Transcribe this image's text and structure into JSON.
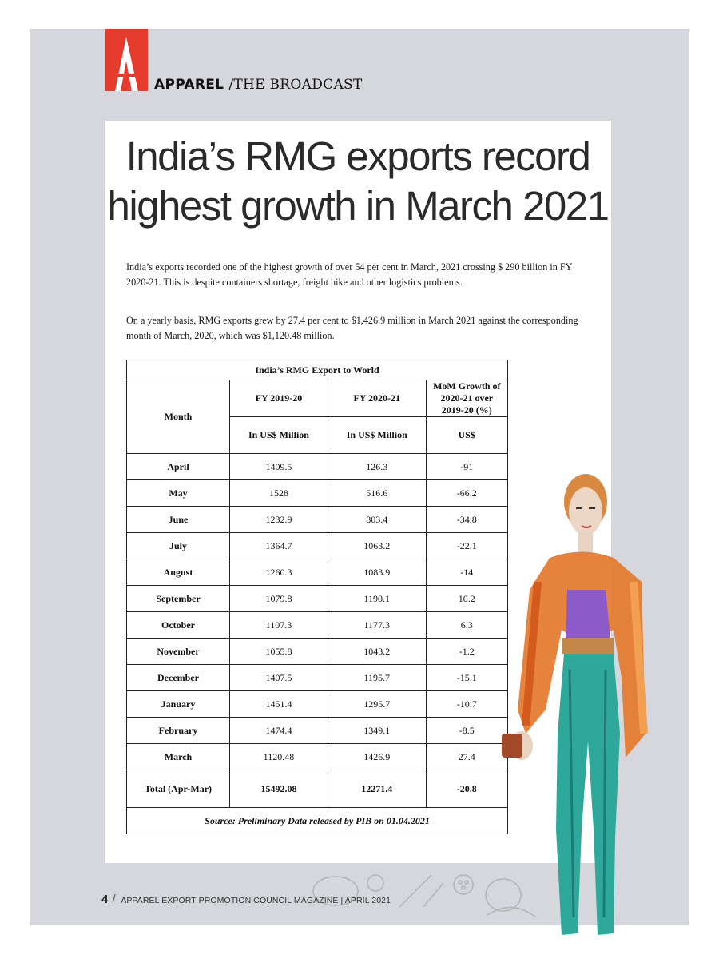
{
  "header": {
    "brand": "APPAREL",
    "section": "/THE BROADCAST"
  },
  "article": {
    "headline_line1": "India’s RMG exports record",
    "headline_line2": "highest growth in March 2021",
    "para1": "India’s exports recorded one of the highest growth of over 54 per cent in March, 2021 crossing $ 290 billion in FY 2020-21. This is despite containers shortage, freight hike and other logistics problems.",
    "para2": "On a yearly basis, RMG exports grew by 27.4 per cent to $1,426.9 million in March 2021 against the corresponding month of March, 2020, which was $1,120.48 million."
  },
  "table": {
    "title": "India’s RMG Export to World",
    "col_month": "Month",
    "col_fy1": "FY 2019-20",
    "col_fy2": "FY 2020-21",
    "col_growth": "MoM Growth of 2020-21 over 2019-20 (%)",
    "unit_fy1": "In US$ Million",
    "unit_fy2": "In US$ Million",
    "unit_growth": "US$",
    "rows": [
      {
        "month": "April",
        "fy1": "1409.5",
        "fy2": "126.3",
        "growth": "-91"
      },
      {
        "month": "May",
        "fy1": "1528",
        "fy2": "516.6",
        "growth": "-66.2"
      },
      {
        "month": "June",
        "fy1": "1232.9",
        "fy2": "803.4",
        "growth": "-34.8"
      },
      {
        "month": "July",
        "fy1": "1364.7",
        "fy2": "1063.2",
        "growth": "-22.1"
      },
      {
        "month": "August",
        "fy1": "1260.3",
        "fy2": "1083.9",
        "growth": "-14"
      },
      {
        "month": "September",
        "fy1": "1079.8",
        "fy2": "1190.1",
        "growth": "10.2"
      },
      {
        "month": "October",
        "fy1": "1107.3",
        "fy2": "1177.3",
        "growth": "6.3"
      },
      {
        "month": "November",
        "fy1": "1055.8",
        "fy2": "1043.2",
        "growth": "-1.2"
      },
      {
        "month": "December",
        "fy1": "1407.5",
        "fy2": "1195.7",
        "growth": "-15.1"
      },
      {
        "month": "January",
        "fy1": "1451.4",
        "fy2": "1295.7",
        "growth": "-10.7"
      },
      {
        "month": "February",
        "fy1": "1474.4",
        "fy2": "1349.1",
        "growth": "-8.5"
      },
      {
        "month": "March",
        "fy1": "1120.48",
        "fy2": "1426.9",
        "growth": "27.4"
      }
    ],
    "total": {
      "month": "Total (Apr-Mar)",
      "fy1": "15492.08",
      "fy2": "12271.4",
      "growth": "-20.8"
    },
    "source": "Source:  Preliminary Data released by PIB on 01.04.2021"
  },
  "footer": {
    "page_number": "4",
    "separator": "/",
    "text": "APPAREL EXPORT PROMOTION COUNCIL MAGAZINE | APRIL 2021"
  },
  "colors": {
    "brand_red": "#e43b2c",
    "page_gray": "#d6d7dc"
  }
}
